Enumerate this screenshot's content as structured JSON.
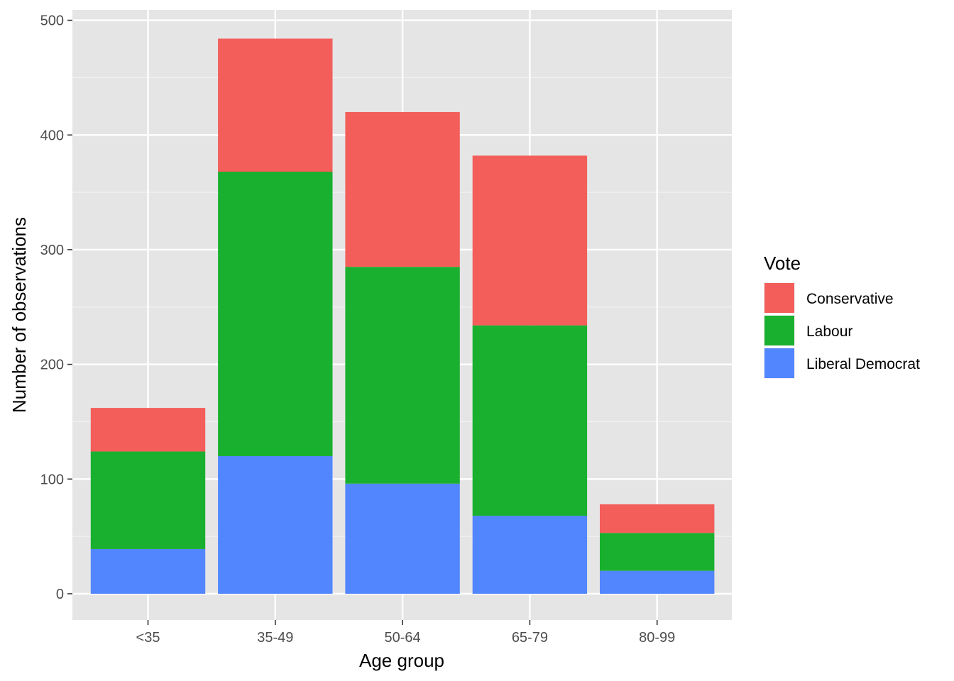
{
  "chart_data": {
    "type": "bar",
    "stacked": true,
    "title": "",
    "xlabel": "Age group",
    "ylabel": "Number of observations",
    "categories": [
      "<35",
      "35-49",
      "50-64",
      "65-79",
      "80-99"
    ],
    "ylim": [
      0,
      500
    ],
    "yticks": [
      "0",
      "100",
      "200",
      "300",
      "400",
      "500"
    ],
    "grid": true,
    "legend_position": "right",
    "legend_title": "Vote",
    "series": [
      {
        "name": "Conservative",
        "color": "#F35E5A",
        "values": [
          38,
          116,
          135,
          148,
          25
        ]
      },
      {
        "name": "Labour",
        "color": "#1AB02F",
        "values": [
          85,
          248,
          189,
          166,
          33
        ]
      },
      {
        "name": "Liberal Democrat",
        "color": "#5286FE",
        "values": [
          39,
          120,
          96,
          68,
          20
        ]
      }
    ]
  }
}
